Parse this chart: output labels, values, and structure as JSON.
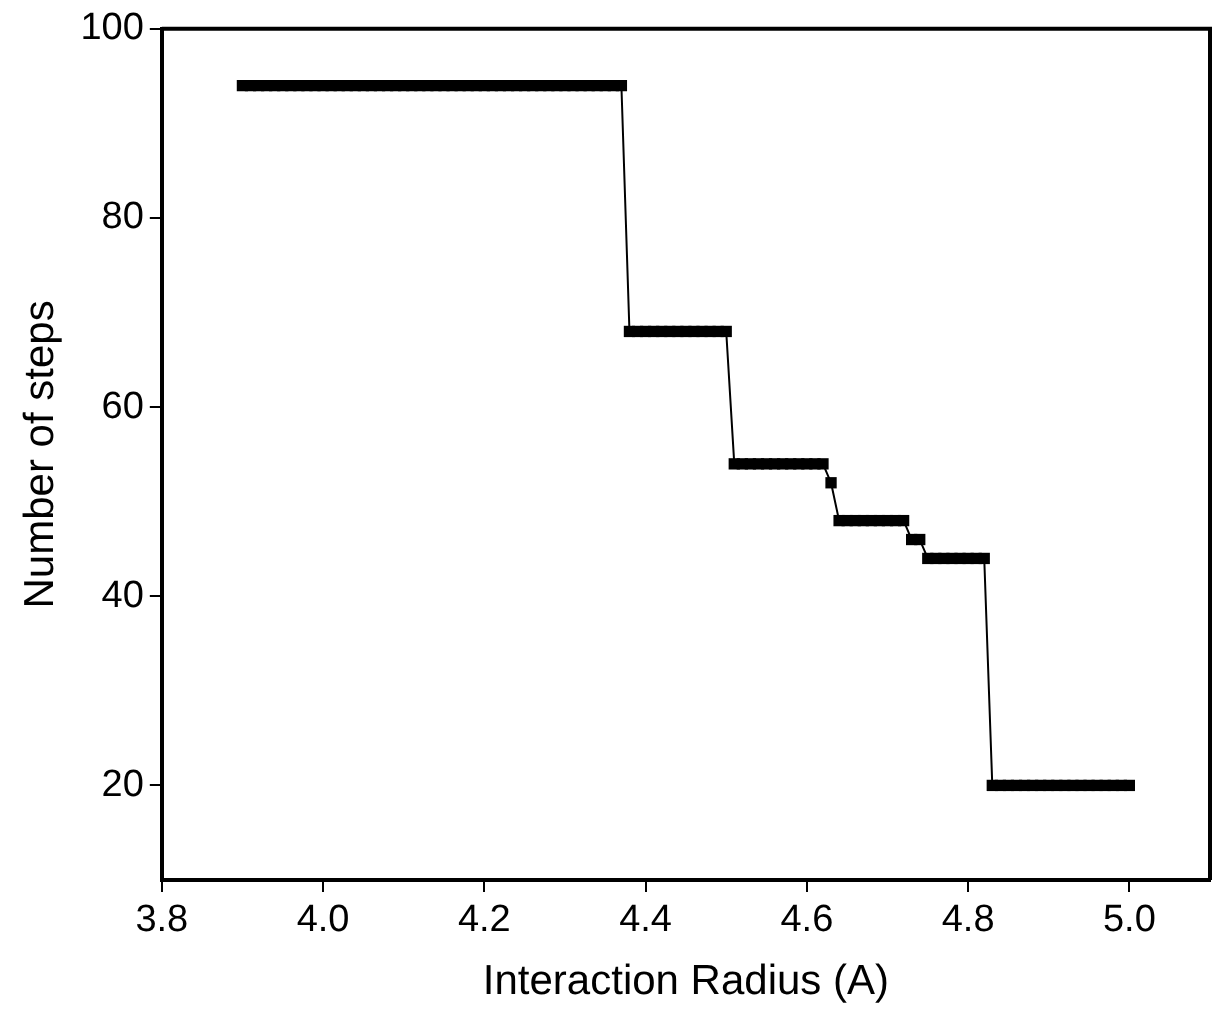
{
  "chart_data": {
    "type": "line",
    "xlabel": "Interaction Radius (A)",
    "ylabel": "Number of steps",
    "x": [
      3.9,
      3.91,
      3.92,
      3.93,
      3.94,
      3.95,
      3.96,
      3.97,
      3.98,
      3.99,
      4.0,
      4.01,
      4.02,
      4.03,
      4.04,
      4.05,
      4.06,
      4.07,
      4.08,
      4.09,
      4.1,
      4.11,
      4.12,
      4.13,
      4.14,
      4.15,
      4.16,
      4.17,
      4.18,
      4.19,
      4.2,
      4.21,
      4.22,
      4.23,
      4.24,
      4.25,
      4.26,
      4.27,
      4.28,
      4.29,
      4.3,
      4.31,
      4.32,
      4.33,
      4.34,
      4.35,
      4.36,
      4.37,
      4.38,
      4.39,
      4.4,
      4.41,
      4.42,
      4.43,
      4.44,
      4.45,
      4.46,
      4.47,
      4.48,
      4.49,
      4.5,
      4.51,
      4.52,
      4.53,
      4.54,
      4.55,
      4.56,
      4.57,
      4.58,
      4.59,
      4.6,
      4.61,
      4.62,
      4.63,
      4.64,
      4.65,
      4.66,
      4.67,
      4.68,
      4.69,
      4.7,
      4.71,
      4.72,
      4.73,
      4.74,
      4.75,
      4.76,
      4.77,
      4.78,
      4.79,
      4.8,
      4.81,
      4.82,
      4.83,
      4.84,
      4.85,
      4.86,
      4.87,
      4.88,
      4.89,
      4.9,
      4.91,
      4.92,
      4.93,
      4.94,
      4.95,
      4.96,
      4.97,
      4.98,
      4.99,
      5.0
    ],
    "series": [
      {
        "color": "#000000",
        "values": [
          94,
          94,
          94,
          94,
          94,
          94,
          94,
          94,
          94,
          94,
          94,
          94,
          94,
          94,
          94,
          94,
          94,
          94,
          94,
          94,
          94,
          94,
          94,
          94,
          94,
          94,
          94,
          94,
          94,
          94,
          94,
          94,
          94,
          94,
          94,
          94,
          94,
          94,
          94,
          94,
          94,
          94,
          94,
          94,
          94,
          94,
          94,
          94,
          68,
          68,
          68,
          68,
          68,
          68,
          68,
          68,
          68,
          68,
          68,
          68,
          68,
          54,
          54,
          54,
          54,
          54,
          54,
          54,
          54,
          54,
          54,
          54,
          54,
          52,
          48,
          48,
          48,
          48,
          48,
          48,
          48,
          48,
          48,
          46,
          46,
          44,
          44,
          44,
          44,
          44,
          44,
          44,
          44,
          20,
          20,
          20,
          20,
          20,
          20,
          20,
          20,
          20,
          20,
          20,
          20,
          20,
          20,
          20,
          20,
          20,
          20
        ]
      }
    ],
    "xlim": [
      3.8,
      5.1
    ],
    "xticks": [
      3.8,
      {
        "value": 4,
        "label": "4.0"
      },
      4.2,
      4.4,
      4.6,
      4.8,
      {
        "value": 5,
        "label": "5.0"
      }
    ],
    "ylim": [
      10,
      100
    ],
    "yticks": [
      20,
      40,
      60,
      80,
      100
    ],
    "grid": false,
    "legend": false,
    "marker": "square",
    "line_style": "solid"
  }
}
